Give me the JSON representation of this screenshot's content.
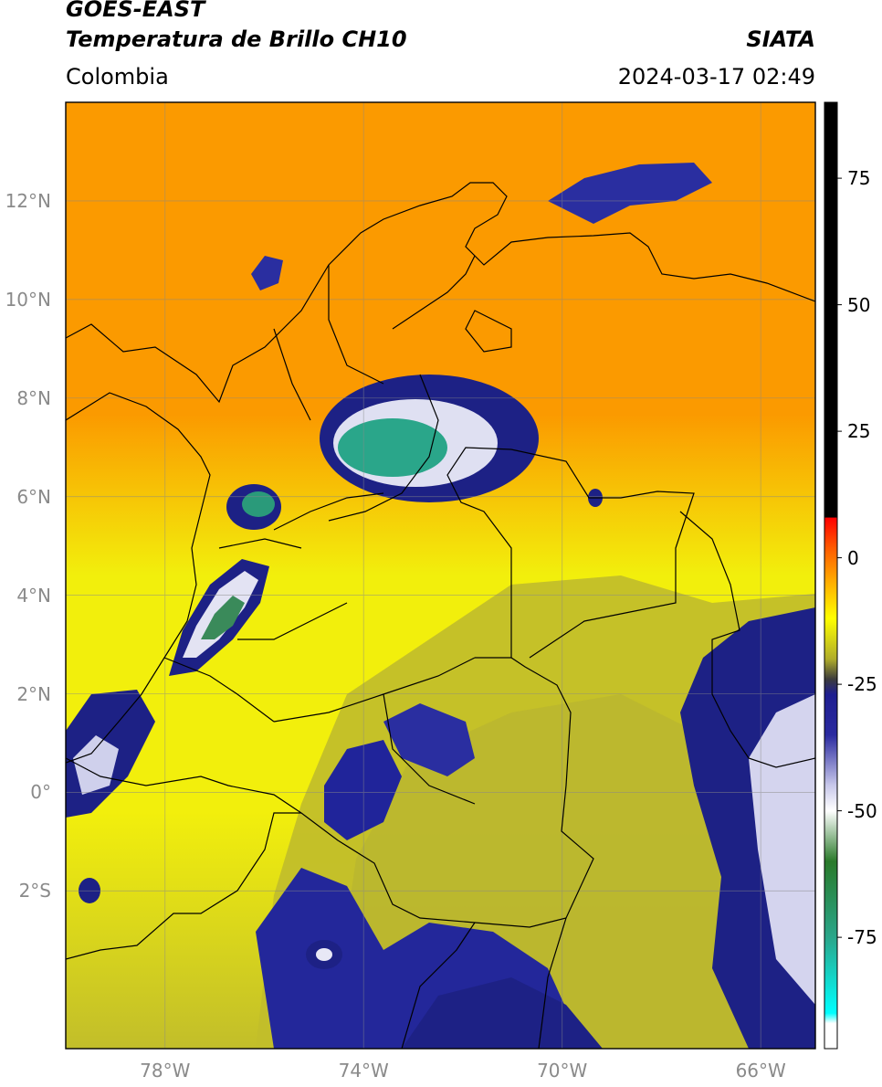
{
  "header": {
    "satellite": "GOES-EAST",
    "product": "Temperatura de Brillo CH10",
    "region": "Colombia",
    "institution": "SIATA",
    "datetime": "2024-03-17 02:49"
  },
  "map": {
    "lon_range": [
      -80.0,
      -64.9
    ],
    "lat_range": [
      -5.2,
      14.0
    ],
    "gridlines": true,
    "lat_ticks": [
      {
        "lat": 12,
        "label": "12°N"
      },
      {
        "lat": 10,
        "label": "10°N"
      },
      {
        "lat": 8,
        "label": "8°N"
      },
      {
        "lat": 6,
        "label": "6°N"
      },
      {
        "lat": 4,
        "label": "4°N"
      },
      {
        "lat": 2,
        "label": "2°N"
      },
      {
        "lat": 0,
        "label": "0°"
      },
      {
        "lat": -2,
        "label": "2°S"
      }
    ],
    "lon_ticks": [
      {
        "lon": -78,
        "label": "78°W"
      },
      {
        "lon": -74,
        "label": "74°W"
      },
      {
        "lon": -70,
        "label": "70°W"
      },
      {
        "lon": -66,
        "label": "66°W"
      }
    ],
    "colors": {
      "warm_orange": "#fb9a00",
      "yellow": "#f2ef0c",
      "olive": "#c2be2a",
      "navy": "#1c2080",
      "white": "#ffffff",
      "teal": "#2aa68a"
    }
  },
  "colorbar": {
    "range_celsius": [
      -97,
      90
    ],
    "ticks": [
      {
        "value": 75,
        "label": "75"
      },
      {
        "value": 50,
        "label": "50"
      },
      {
        "value": 25,
        "label": "25"
      },
      {
        "value": 0,
        "label": "0"
      },
      {
        "value": -25,
        "label": "-25"
      },
      {
        "value": -50,
        "label": "-50"
      },
      {
        "value": -75,
        "label": "-75"
      }
    ],
    "stops": [
      {
        "value": 90,
        "color": "#000000"
      },
      {
        "value": 8,
        "color": "#000000"
      },
      {
        "value": 7.9,
        "color": "#ff0000"
      },
      {
        "value": 2,
        "color": "#ff5a00"
      },
      {
        "value": -5,
        "color": "#ffb000"
      },
      {
        "value": -12,
        "color": "#ffff00"
      },
      {
        "value": -20,
        "color": "#b0ad2a"
      },
      {
        "value": -24,
        "color": "#3c3c3c"
      },
      {
        "value": -27,
        "color": "#1e1e90"
      },
      {
        "value": -35,
        "color": "#2a2aa0"
      },
      {
        "value": -45,
        "color": "#c8c8ea"
      },
      {
        "value": -50,
        "color": "#ffffff"
      },
      {
        "value": -60,
        "color": "#2a7a2a"
      },
      {
        "value": -75,
        "color": "#2aa68a"
      },
      {
        "value": -90,
        "color": "#00ffff"
      },
      {
        "value": -92,
        "color": "#ffffff"
      },
      {
        "value": -97,
        "color": "#ffffff"
      }
    ]
  }
}
